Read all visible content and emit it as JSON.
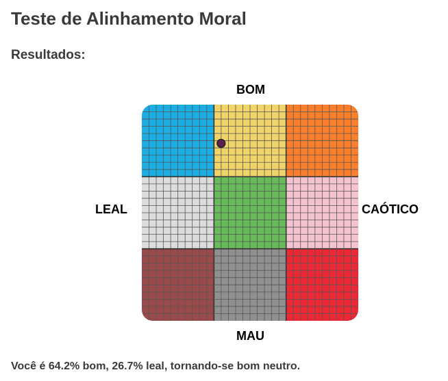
{
  "page": {
    "title": "Teste de Alinhamento Moral",
    "section_heading": "Resultados:",
    "result_text": "Você é 64.2% bom, 26.7% leal, tornando-se bom neutro."
  },
  "chart_data": {
    "type": "scatter",
    "axis_labels": {
      "top": "BOM",
      "bottom": "MAU",
      "left": "LEAL",
      "right": "CAÓTICO"
    },
    "xlim": [
      -100,
      100
    ],
    "ylim": [
      -100,
      100
    ],
    "grid": true,
    "cells": [
      {
        "row": 0,
        "col": 0,
        "color": "#1aaee5"
      },
      {
        "row": 0,
        "col": 1,
        "color": "#f0d46a"
      },
      {
        "row": 0,
        "col": 2,
        "color": "#fb7f2b"
      },
      {
        "row": 1,
        "col": 0,
        "color": "#dcdcdc"
      },
      {
        "row": 1,
        "col": 1,
        "color": "#68bb59"
      },
      {
        "row": 1,
        "col": 2,
        "color": "#f5c3d0"
      },
      {
        "row": 2,
        "col": 0,
        "color": "#9a4a4a"
      },
      {
        "row": 2,
        "col": 1,
        "color": "#909090"
      },
      {
        "row": 2,
        "col": 2,
        "color": "#ec2834"
      }
    ],
    "point": {
      "x": -26.7,
      "y": 64.2,
      "color": "#5a1f4e"
    }
  }
}
